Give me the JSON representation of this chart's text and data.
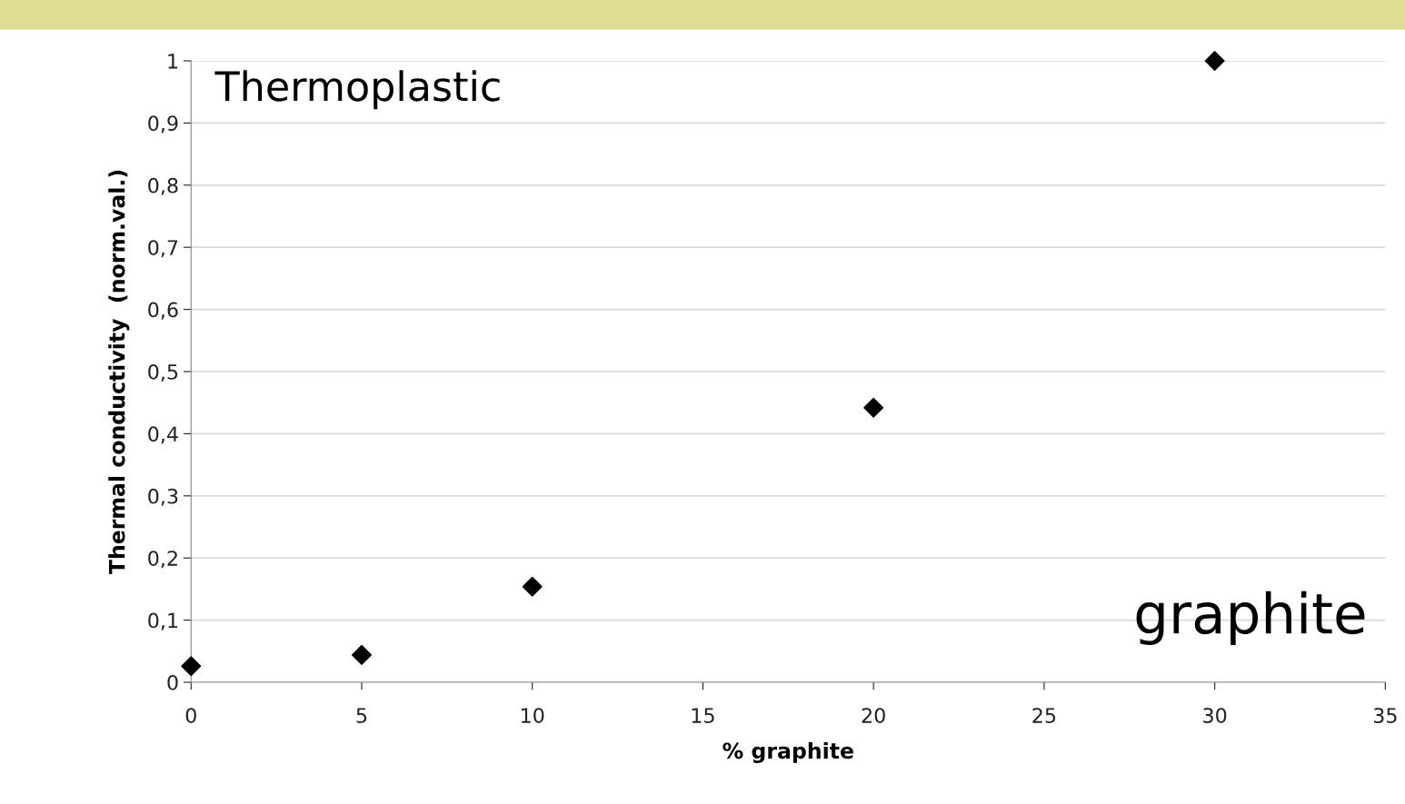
{
  "chart_data": {
    "type": "scatter",
    "xlabel": "% graphite",
    "ylabel": "Thermal conductivity  (norm.val.)",
    "x": [
      0,
      5,
      10,
      20,
      30
    ],
    "series": [
      {
        "color": "#000000",
        "values": [
          0.026,
          0.044,
          0.154,
          0.442,
          1.0
        ]
      }
    ],
    "xlim": [
      0,
      35
    ],
    "xticks": [
      0,
      5,
      10,
      15,
      20,
      25,
      30,
      35
    ],
    "ylim": [
      0,
      1
    ],
    "yticks": [
      0,
      {
        "value": 0.1,
        "label": "0,1"
      },
      {
        "value": 0.2,
        "label": "0,2"
      },
      {
        "value": 0.3,
        "label": "0,3"
      },
      {
        "value": 0.4,
        "label": "0,4"
      },
      {
        "value": 0.5,
        "label": "0,5"
      },
      {
        "value": 0.6,
        "label": "0,6"
      },
      {
        "value": 0.7,
        "label": "0,7"
      },
      {
        "value": 0.8,
        "label": "0,8"
      },
      {
        "value": 0.9,
        "label": "0,9"
      },
      1
    ],
    "annotations": [
      "Thermoplastic",
      "graphite"
    ],
    "grid": "y",
    "marker": "diamond"
  }
}
